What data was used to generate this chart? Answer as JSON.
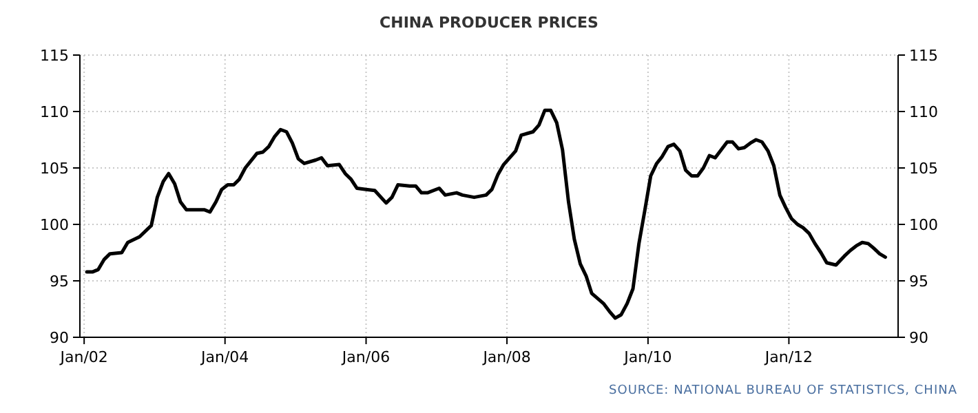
{
  "chart_data": {
    "type": "line",
    "title": "CHINA PRODUCER PRICES",
    "annotations": [
      "SOURCE: NATIONAL BUREAU OF STATISTICS, CHINA"
    ],
    "x": [
      "2002-01-15",
      "2002-02-15",
      "2002-03-15",
      "2002-04-15",
      "2002-05-15",
      "2002-07-15",
      "2002-08-15",
      "2002-10-15",
      "2002-12-15",
      "2003-01-15",
      "2003-02-15",
      "2003-03-15",
      "2003-04-15",
      "2003-05-15",
      "2003-06-15",
      "2003-09-15",
      "2003-10-15",
      "2003-11-15",
      "2003-12-15",
      "2004-01-15",
      "2004-02-15",
      "2004-03-15",
      "2004-04-15",
      "2004-06-15",
      "2004-07-15",
      "2004-08-15",
      "2004-09-15",
      "2004-10-15",
      "2004-11-15",
      "2004-12-15",
      "2005-01-15",
      "2005-02-15",
      "2005-04-15",
      "2005-05-15",
      "2005-06-15",
      "2005-08-15",
      "2005-09-15",
      "2005-10-15",
      "2005-11-15",
      "2006-01-01",
      "2006-02-15",
      "2006-04-15",
      "2006-05-15",
      "2006-06-15",
      "2006-08-15",
      "2006-09-15",
      "2006-10-15",
      "2006-11-15",
      "2007-01-15",
      "2007-02-15",
      "2007-04-15",
      "2007-05-15",
      "2007-07-15",
      "2007-09-15",
      "2007-10-15",
      "2007-11-15",
      "2007-12-15",
      "2008-02-15",
      "2008-03-15",
      "2008-05-15",
      "2008-06-15",
      "2008-07-15",
      "2008-08-15",
      "2008-09-15",
      "2008-10-15",
      "2008-11-15",
      "2008-12-15",
      "2009-01-15",
      "2009-02-15",
      "2009-03-15",
      "2009-05-15",
      "2009-06-15",
      "2009-07-15",
      "2009-08-15",
      "2009-09-15",
      "2009-10-15",
      "2009-11-15",
      "2009-12-15",
      "2010-01-15",
      "2010-02-15",
      "2010-03-15",
      "2010-04-15",
      "2010-05-15",
      "2010-06-15",
      "2010-07-15",
      "2010-08-15",
      "2010-09-15",
      "2010-10-15",
      "2010-11-15",
      "2010-12-15",
      "2011-01-15",
      "2011-02-15",
      "2011-03-15",
      "2011-04-15",
      "2011-05-15",
      "2011-06-15",
      "2011-07-15",
      "2011-08-15",
      "2011-09-15",
      "2011-10-15",
      "2011-11-15",
      "2011-12-15",
      "2012-01-15",
      "2012-02-15",
      "2012-03-15",
      "2012-04-15",
      "2012-05-15",
      "2012-06-15",
      "2012-07-15",
      "2012-09-01",
      "2012-10-15",
      "2012-11-15",
      "2012-12-15",
      "2013-01-15",
      "2013-02-15",
      "2013-03-15",
      "2013-04-15",
      "2013-05-15"
    ],
    "series": [
      {
        "color": "#000000",
        "values": [
          95.8,
          95.8,
          96.0,
          96.9,
          97.4,
          97.5,
          98.4,
          98.9,
          99.9,
          102.4,
          103.8,
          104.5,
          103.6,
          102.0,
          101.3,
          101.3,
          101.1,
          102.0,
          103.1,
          103.5,
          103.5,
          104.0,
          105.0,
          106.3,
          106.4,
          106.9,
          107.8,
          108.4,
          108.2,
          107.2,
          105.8,
          105.4,
          105.7,
          105.9,
          105.2,
          105.3,
          104.5,
          104.0,
          103.2,
          103.1,
          103.0,
          101.9,
          102.4,
          103.5,
          103.4,
          103.4,
          102.8,
          102.8,
          103.2,
          102.6,
          102.8,
          102.6,
          102.4,
          102.6,
          103.1,
          104.4,
          105.3,
          106.5,
          107.9,
          108.2,
          108.8,
          110.1,
          110.1,
          109.0,
          106.6,
          102.0,
          98.7,
          96.5,
          95.4,
          93.9,
          93.0,
          92.3,
          91.7,
          92.0,
          93.0,
          94.3,
          98.3,
          101.2,
          104.3,
          105.4,
          106.0,
          106.9,
          107.1,
          106.5,
          104.8,
          104.3,
          104.3,
          105.0,
          106.1,
          105.9,
          106.6,
          107.3,
          107.3,
          106.7,
          106.8,
          107.2,
          107.5,
          107.3,
          106.5,
          105.2,
          102.6,
          101.5,
          100.5,
          100.0,
          99.7,
          99.2,
          98.3,
          97.5,
          96.6,
          96.4,
          97.2,
          97.7,
          98.1,
          98.4,
          98.3,
          97.9,
          97.4,
          97.1
        ]
      }
    ],
    "xlim": [
      "2001-12-10",
      "2013-07-20"
    ],
    "xticks": [
      {
        "value": "2002-01-01",
        "label": "Jan/02"
      },
      {
        "value": "2004-01-01",
        "label": "Jan/04"
      },
      {
        "value": "2006-01-01",
        "label": "Jan/06"
      },
      {
        "value": "2008-01-01",
        "label": "Jan/08"
      },
      {
        "value": "2010-01-01",
        "label": "Jan/10"
      },
      {
        "value": "2012-01-01",
        "label": "Jan/12"
      }
    ],
    "ylim": [
      90,
      115
    ],
    "yticks": [
      90,
      95,
      100,
      105,
      110,
      115
    ],
    "y2lim": [
      90,
      115
    ],
    "y2ticks": [
      90,
      95,
      100,
      105,
      110,
      115
    ],
    "grid": true,
    "marker": "none",
    "line_style": "solid"
  }
}
